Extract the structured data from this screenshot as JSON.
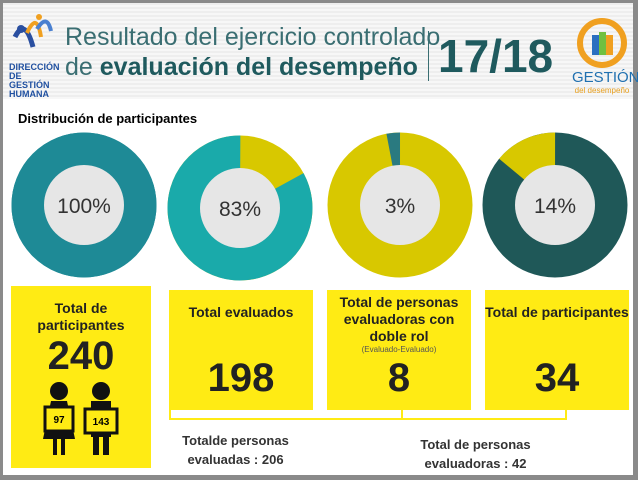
{
  "header": {
    "title_line1": "Resultado del ejercicio controlado",
    "title_line2_prefix": "de ",
    "title_line2_bold": "evaluación del desempeño",
    "period": "17/18",
    "logo_left_text": "DIRECCIÓN DE GESTIÓN HUMANA",
    "logo_right_text": "GESTIÓN",
    "logo_right_sub": "del desempeño"
  },
  "section_title": "Distribución de participantes",
  "donuts": [
    {
      "label": "100%",
      "value": 100,
      "main_color": "#1e8a96",
      "rest_color": "#1e8a96"
    },
    {
      "label": "83%",
      "value": 83,
      "main_color": "#1aaaaa",
      "rest_color": "#d8c800"
    },
    {
      "label": "3%",
      "value": 3,
      "main_color": "#2a7a80",
      "rest_color": "#d8c800"
    },
    {
      "label": "14%",
      "value": 14,
      "main_color": "#d8c800",
      "rest_color": "#1f5858"
    }
  ],
  "cards": [
    {
      "title": "Total de participantes",
      "value": "240",
      "women": "97",
      "men": "143"
    },
    {
      "title": "Total evaluados",
      "value": "198"
    },
    {
      "title": "Total de personas evaluadoras con doble rol",
      "note": "(Evaluado-Evaluado)",
      "value": "8"
    },
    {
      "title": "Total de participantes",
      "value": "34"
    }
  ],
  "footers": {
    "evaluated": "Totalde personas evaluadas : 206",
    "evaluators": "Total de personas evaluadoras : 42"
  }
}
